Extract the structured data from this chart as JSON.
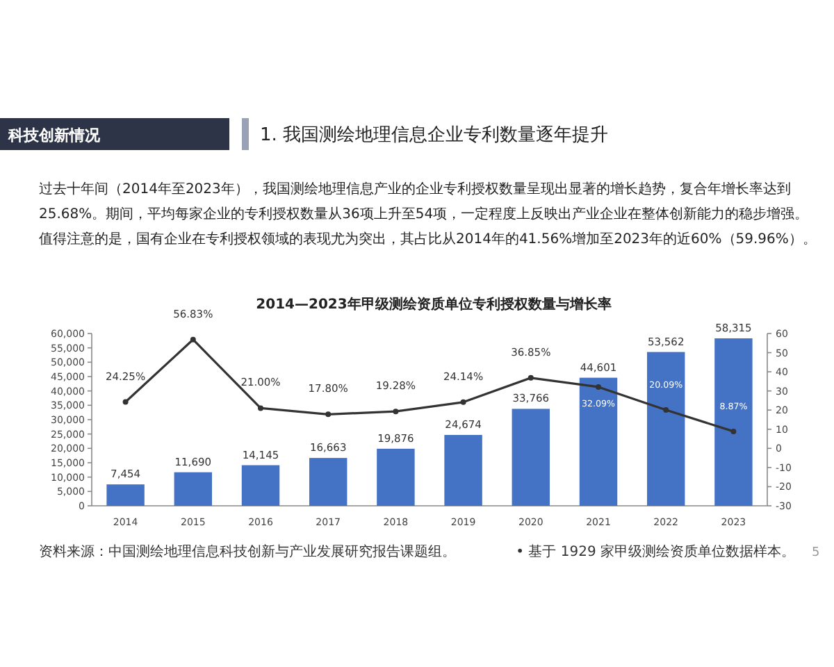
{
  "chart_data": {
    "type": "bar",
    "title": "2014—2023年甲级测绘资质单位专利授权数量与增长率",
    "subtitle": "1. 我国测绘地理信息企业专利数量逐年提升",
    "annotations": [
      "科技创新情况",
      "过去十年间（2014年至2023年），我国测绘地理信息产业的企业专利授权数量呈现出显著的增长趋势，复合年增长率达到25.68%。期间，平均每家企业的专利授权数量从36项上升至54项，一定程度上反映出产业企业在整体创新能力的稳步增强。值得注意的是，国有企业在专利授权领域的表现尤为突出，其占比从2014年的41.56%增加至2023年的近60%（59.96%）。",
      "资料来源：中国测绘地理信息科技创新与产业发展研究报告课题组。",
      "• 基于 1929 家甲级测绘资质单位数据样本。",
      "5"
    ],
    "categories": [
      "2014",
      "2015",
      "2016",
      "2017",
      "2018",
      "2019",
      "2020",
      "2021",
      "2022",
      "2023"
    ],
    "series": [
      {
        "color": "#4472c4",
        "values": [
          7454,
          11690,
          14145,
          16663,
          19876,
          24674,
          33766,
          44601,
          53562,
          58315
        ],
        "value_labels": [
          "7,454",
          "11,690",
          "14,145",
          "16,663",
          "19,876",
          "24,674",
          "33,766",
          "44,601",
          "53,562",
          "58,315"
        ]
      },
      {
        "type": "line",
        "axis": "y2",
        "color": "#333333",
        "marker": "circle",
        "values": [
          24.25,
          56.83,
          21.0,
          17.8,
          19.28,
          24.14,
          36.85,
          32.09,
          20.09,
          8.87
        ],
        "value_labels": [
          "24.25%",
          "56.83%",
          "21.00%",
          "17.80%",
          "19.28%",
          "24.14%",
          "36.85%",
          "32.09%",
          "20.09%",
          "8.87%"
        ]
      }
    ],
    "ylim": [
      0,
      60000
    ],
    "yticks": [
      0,
      {
        "value": 5000,
        "label": "5,000"
      },
      {
        "value": 10000,
        "label": "10,000"
      },
      {
        "value": 15000,
        "label": "15,000"
      },
      {
        "value": 20000,
        "label": "20,000"
      },
      {
        "value": 25000,
        "label": "25,000"
      },
      {
        "value": 30000,
        "label": "30,000"
      },
      {
        "value": 35000,
        "label": "35,000"
      },
      {
        "value": 40000,
        "label": "40,000"
      },
      {
        "value": 45000,
        "label": "45,000"
      },
      {
        "value": 50000,
        "label": "50,000"
      },
      {
        "value": 55000,
        "label": "55,000"
      },
      {
        "value": 60000,
        "label": "60,000"
      }
    ],
    "y2lim": [
      -30,
      60
    ],
    "y2ticks": [
      -30,
      -20,
      -10,
      0,
      10,
      20,
      30,
      40,
      50,
      60
    ],
    "grid": false
  }
}
